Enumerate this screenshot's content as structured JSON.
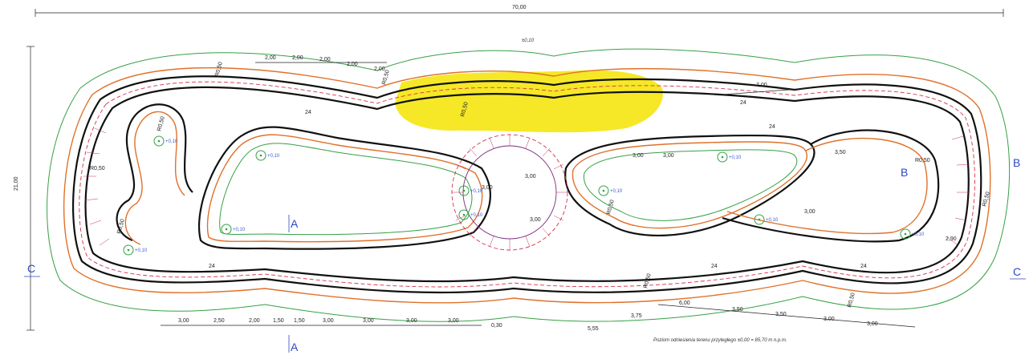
{
  "overall_width": "70,00",
  "overall_height": "21,00",
  "section_labels": {
    "a_top": "A",
    "a_bottom": "A",
    "b": "B",
    "b_inner": "B",
    "c_left": "C",
    "c_right": "C"
  },
  "top_dims": [
    "2,00",
    "2,00",
    "2,00",
    "2,00",
    "2,00"
  ],
  "bottom_dims_left": [
    "3,00",
    "2,50",
    "2,00",
    "1,50",
    "1,50",
    "3,00",
    "3,00",
    "3,00",
    "3,00"
  ],
  "bottom_dims_right": [
    "6,00",
    "3,50",
    "3,50",
    "3,00",
    "3,00"
  ],
  "bottom_misc": [
    "0,30",
    "5,55",
    "3,75"
  ],
  "right_dim": "2,90",
  "top_right_dim": "7,00",
  "mid_dims": [
    "3,00",
    "3,00",
    "3,00",
    "3,00",
    "3,00",
    "3,50",
    "3,00"
  ],
  "radii": [
    "R0,50",
    "R0,50",
    "R0,50",
    "R0,50",
    "R0,50",
    "R0,50",
    "R0,50",
    "R0,50",
    "R0,50",
    "R0,50",
    "R0,50"
  ],
  "elev_points": [
    "+0,10",
    "+0,10",
    "+0,10",
    "+0,10",
    "+0,10",
    "+0,10",
    "+0,10",
    "+0,10",
    "+0,10",
    "+0,10"
  ],
  "slope_labels": [
    "24",
    "24",
    "24",
    "24",
    "24",
    "24"
  ],
  "spot_label": "±0,10",
  "note": "Poziom odniesienia terenu przyległego ±0,00 = 85,70 m n.p.m.",
  "colors": {
    "track": "#111111",
    "edge": "#e0712a",
    "contour": "#35a045",
    "dash": "#d6314b",
    "highlight": "#f5e400",
    "text_blue": "#3a5bd6"
  }
}
